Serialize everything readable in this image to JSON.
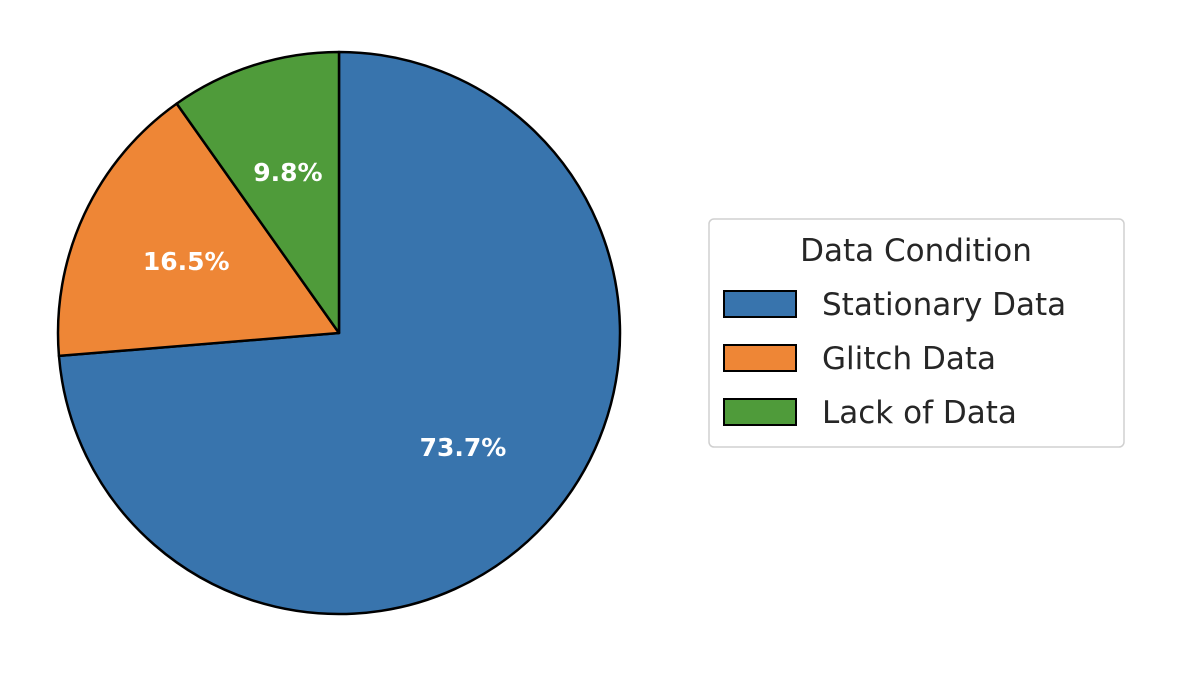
{
  "chart_data": {
    "type": "pie",
    "start_angle": "top",
    "direction": "clockwise",
    "slices": [
      {
        "label": "Stationary Data",
        "value": 73.7,
        "display": "73.7%",
        "color": "#3874ad"
      },
      {
        "label": "Glitch Data",
        "value": 16.5,
        "display": "16.5%",
        "color": "#ee8636"
      },
      {
        "label": "Lack of Data",
        "value": 9.8,
        "display": "9.8%",
        "color": "#4f9b3a"
      }
    ],
    "legend": {
      "title": "Data Condition",
      "placement": "right"
    },
    "edge_color": "#000000",
    "label_color": "#ffffff"
  }
}
